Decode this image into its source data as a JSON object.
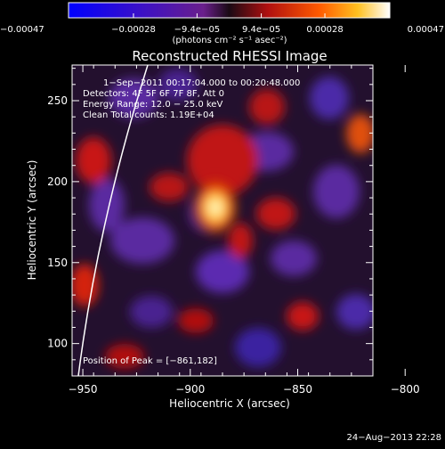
{
  "chart_data": {
    "type": "heatmap",
    "title": "Reconstructed RHESSI Image",
    "xlabel": "Heliocentric X (arcsec)",
    "ylabel": "Heliocentric Y (arcsec)",
    "xlim": [
      -955,
      -815
    ],
    "ylim": [
      80,
      272
    ],
    "x_ticks": [
      -950,
      -900,
      -850,
      -800
    ],
    "x_tick_labels": [
      "−950",
      "−900",
      "−850",
      "−800"
    ],
    "y_ticks": [
      100,
      150,
      200,
      250
    ],
    "y_tick_labels": [
      "100",
      "150",
      "200",
      "250"
    ],
    "colorbar": {
      "range": [
        -0.00047,
        0.00047
      ],
      "ticks": [
        -0.00047,
        -0.00028,
        -9.4e-05,
        9.4e-05,
        0.00028,
        0.00047
      ],
      "tick_labels": [
        "−0.00047",
        "−0.00028",
        "−9.4e−05",
        "9.4e−05",
        "0.00028",
        "0.00047"
      ],
      "unit_label": "(photons cm⁻² s⁻¹ asec⁻²)"
    },
    "annotations": [
      "1−Sep−2011 00:17:04.000 to 00:20:48.000",
      "Detectors: 4F 5F 6F 7F 8F, Att 0",
      "Energy Range: 12.0 − 25.0 keV",
      "Clean    Total counts: 1.19E+04"
    ],
    "peak_label": "Position of Peak = [−861,182]",
    "peak": [
      -861,
      182
    ],
    "footer_date": "24−Aug−2013 22:28"
  }
}
